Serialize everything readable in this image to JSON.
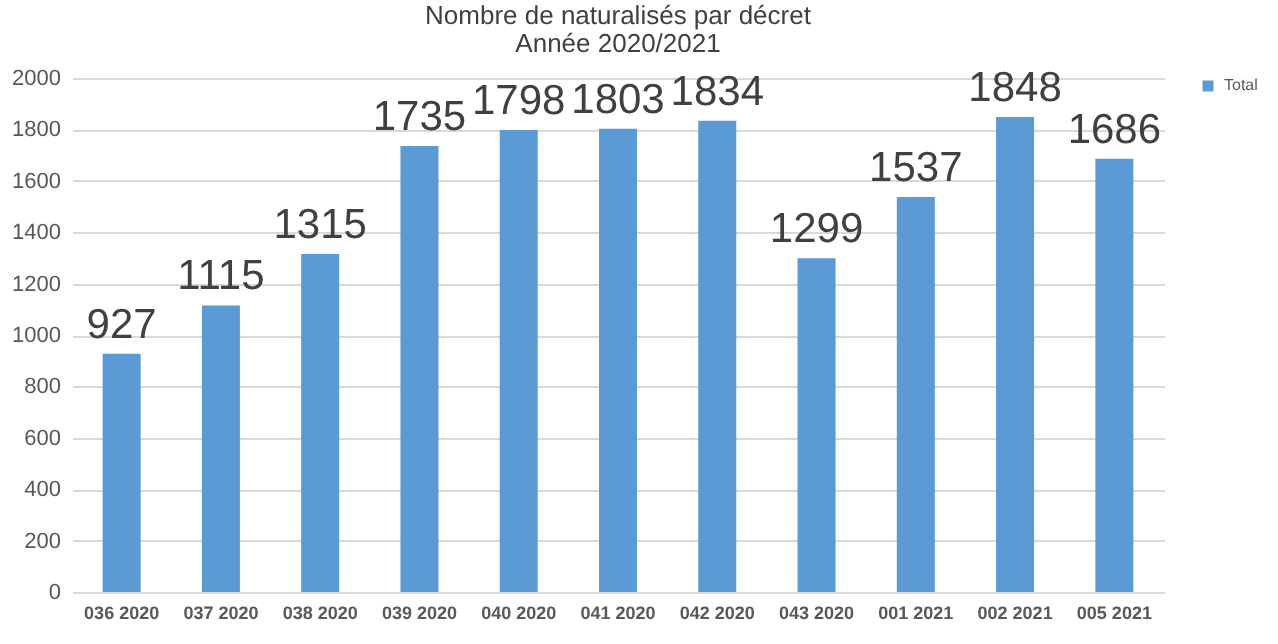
{
  "chart_data": {
    "type": "bar",
    "title": "Nombre de naturalisés par décret",
    "subtitle": "Année 2020/2021",
    "categories": [
      "036 2020",
      "037 2020",
      "038 2020",
      "039 2020",
      "040 2020",
      "041 2020",
      "042 2020",
      "043 2020",
      "001 2021",
      "002 2021",
      "005 2021"
    ],
    "series": [
      {
        "name": "Total",
        "color": "#5b9bd5",
        "values": [
          927,
          1115,
          1315,
          1735,
          1798,
          1803,
          1834,
          1299,
          1537,
          1848,
          1686
        ]
      }
    ],
    "ylim": [
      0,
      2000
    ],
    "yticks": [
      0,
      200,
      400,
      600,
      800,
      1000,
      1200,
      1400,
      1600,
      1800,
      2000
    ],
    "grid": "y",
    "legend": "right",
    "data_labels": true
  }
}
